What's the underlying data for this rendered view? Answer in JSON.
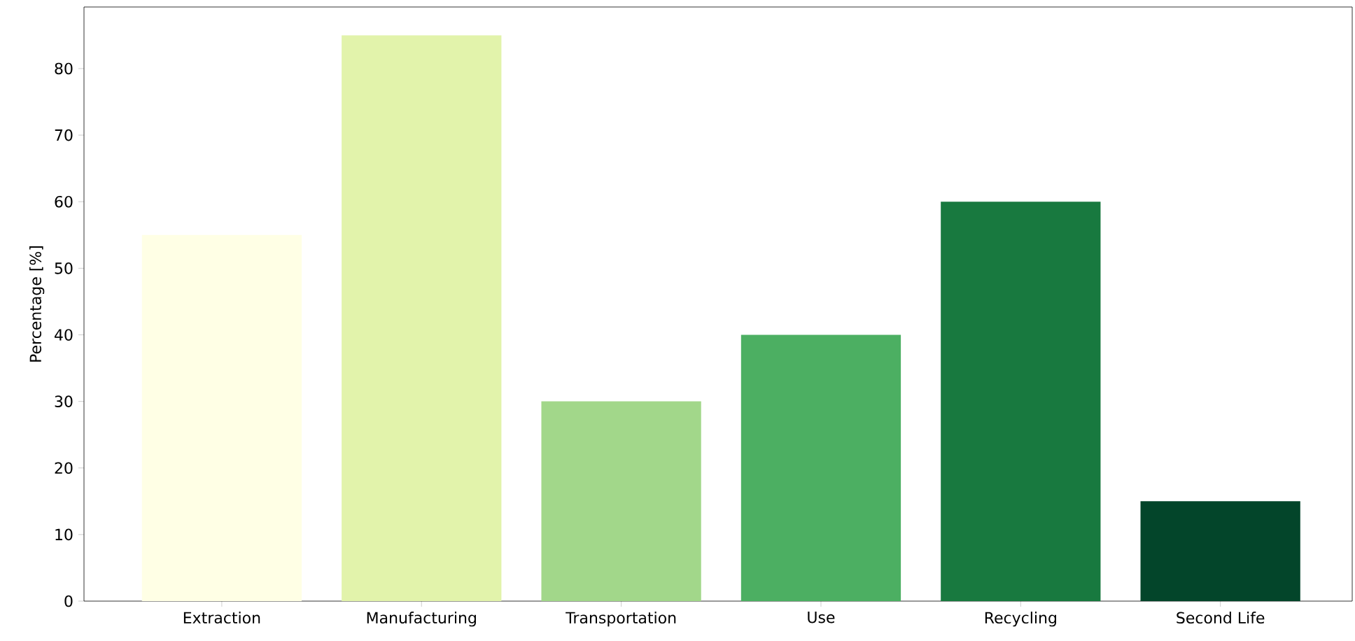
{
  "chart_data": {
    "type": "bar",
    "ylabel": "Percentage [%]",
    "categories": [
      "Extraction",
      "Manufacturing",
      "Transportation",
      "Use",
      "Recycling",
      "Second Life"
    ],
    "values": [
      55,
      85,
      30,
      40,
      60,
      15
    ],
    "colors": [
      "#ffffe5",
      "#e2f3ab",
      "#a2d78a",
      "#4caf62",
      "#18793f",
      "#03452a"
    ],
    "ylim": [
      0,
      89.25
    ],
    "yticks": [
      0,
      10,
      20,
      30,
      40,
      50,
      60,
      70,
      80
    ],
    "grid": false
  }
}
